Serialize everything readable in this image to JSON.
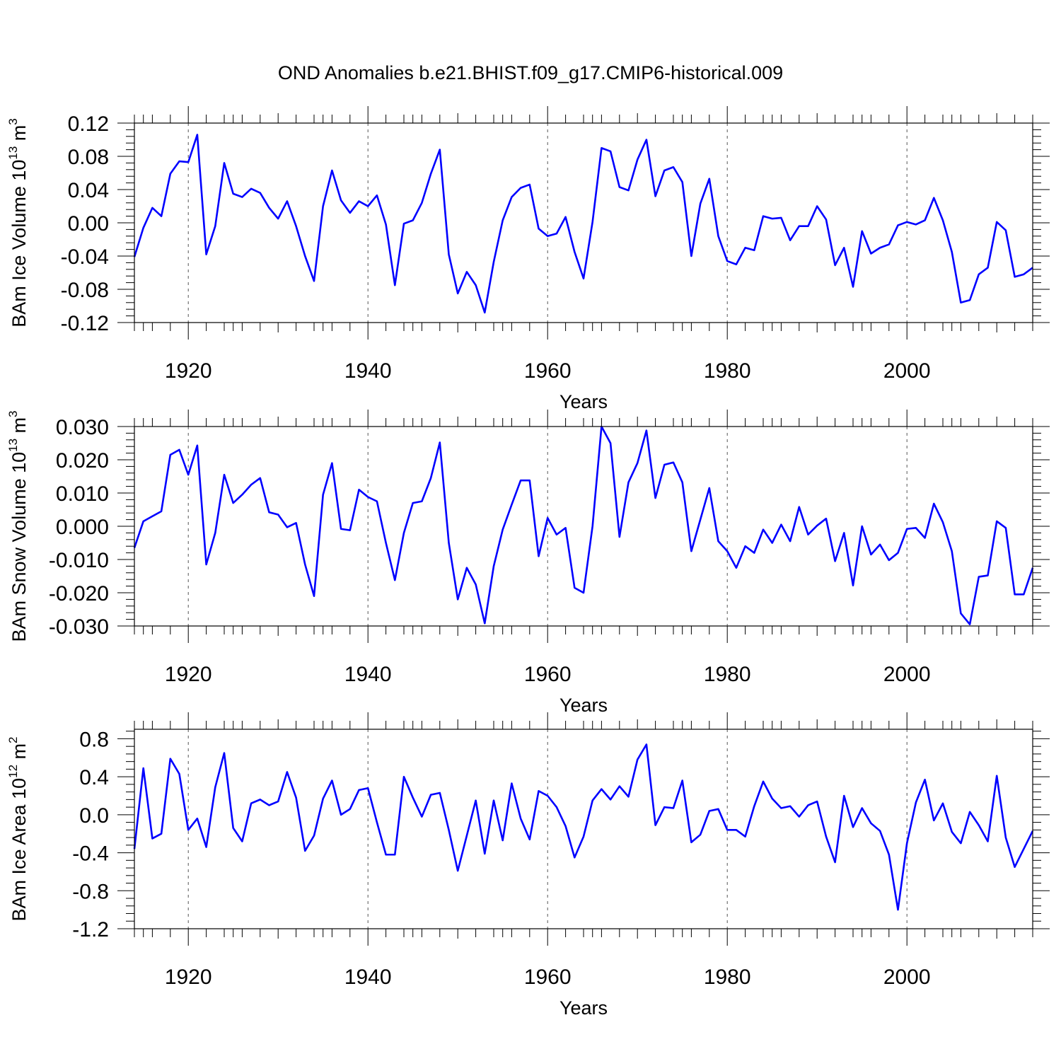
{
  "title": "OND Anomalies b.e21.BHIST.f09_g17.CMIP6-historical.009",
  "colors": {
    "line": "#0000ff",
    "axis": "#000000",
    "grid": "#555555"
  },
  "chart_data": [
    {
      "type": "line",
      "ylabel": {
        "base": "BAm Ice Volume 10",
        "exp": "13",
        "unit": " m",
        "unit_exp": "3"
      },
      "xlabel": "Years",
      "xlim": [
        1914,
        2014
      ],
      "ylim": [
        -0.12,
        0.12
      ],
      "ytick_values": [
        -0.12,
        -0.08,
        -0.04,
        0.0,
        0.04,
        0.08,
        0.12
      ],
      "ytick_labels": [
        "-0.12",
        "-0.08",
        "-0.04",
        "0.00",
        "0.04",
        "0.08",
        "0.12"
      ],
      "xtick_values": [
        1920,
        1940,
        1960,
        1980,
        2000
      ],
      "xtick_labels": [
        "1920",
        "1940",
        "1960",
        "1980",
        "2000"
      ],
      "x_start": 1914,
      "values": [
        -0.041,
        -0.006,
        0.018,
        0.008,
        0.059,
        0.074,
        0.073,
        0.106,
        -0.038,
        -0.004,
        0.072,
        0.035,
        0.031,
        0.041,
        0.036,
        0.018,
        0.005,
        0.026,
        -0.004,
        -0.04,
        -0.07,
        0.02,
        0.063,
        0.027,
        0.012,
        0.026,
        0.02,
        0.033,
        -0.002,
        -0.075,
        -0.001,
        0.003,
        0.024,
        0.059,
        0.088,
        -0.038,
        -0.085,
        -0.059,
        -0.075,
        -0.108,
        -0.047,
        0.003,
        0.031,
        0.042,
        0.046,
        -0.007,
        -0.016,
        -0.013,
        0.007,
        -0.035,
        -0.067,
        0.001,
        0.09,
        0.086,
        0.043,
        0.039,
        0.076,
        0.1,
        0.032,
        0.063,
        0.067,
        0.049,
        -0.04,
        0.023,
        0.053,
        -0.016,
        -0.046,
        -0.05,
        -0.03,
        -0.033,
        0.008,
        0.005,
        0.006,
        -0.021,
        -0.004,
        -0.004,
        0.02,
        0.004,
        -0.051,
        -0.03,
        -0.077,
        -0.01,
        -0.037,
        -0.03,
        -0.026,
        -0.003,
        0.001,
        -0.002,
        0.003,
        0.03,
        0.003,
        -0.035,
        -0.096,
        -0.093,
        -0.062,
        -0.054,
        0.001,
        -0.009,
        -0.065,
        -0.062,
        -0.054
      ]
    },
    {
      "type": "line",
      "ylabel": {
        "base": "BAm Snow Volume 10",
        "exp": "13",
        "unit": " m",
        "unit_exp": "3"
      },
      "xlabel": "Years",
      "xlim": [
        1914,
        2014
      ],
      "ylim": [
        -0.03,
        0.03
      ],
      "ytick_values": [
        -0.03,
        -0.02,
        -0.01,
        0.0,
        0.01,
        0.02,
        0.03
      ],
      "ytick_labels": [
        "-0.030",
        "-0.020",
        "-0.010",
        "0.000",
        "0.010",
        "0.020",
        "0.030"
      ],
      "xtick_values": [
        1920,
        1940,
        1960,
        1980,
        2000
      ],
      "xtick_labels": [
        "1920",
        "1940",
        "1960",
        "1980",
        "2000"
      ],
      "x_start": 1914,
      "values": [
        -0.0065,
        0.0015,
        0.003,
        0.0045,
        0.0215,
        0.023,
        0.0155,
        0.0243,
        -0.0115,
        -0.002,
        0.0155,
        0.007,
        0.0095,
        0.0125,
        0.0145,
        0.0042,
        0.0035,
        -0.0003,
        0.001,
        -0.0115,
        -0.021,
        0.0095,
        0.019,
        -0.0008,
        -0.0012,
        0.011,
        0.0088,
        0.0075,
        -0.005,
        -0.0162,
        -0.002,
        0.007,
        0.0075,
        0.0145,
        0.0252,
        -0.005,
        -0.022,
        -0.0125,
        -0.0175,
        -0.0292,
        -0.012,
        -0.001,
        0.0065,
        0.0138,
        0.0138,
        -0.009,
        0.0025,
        -0.0025,
        -0.0005,
        -0.0185,
        -0.02,
        0.0,
        0.03,
        0.025,
        -0.0032,
        0.0132,
        0.019,
        0.0288,
        0.0085,
        0.0185,
        0.0192,
        0.0132,
        -0.0075,
        0.002,
        0.0115,
        -0.0045,
        -0.0075,
        -0.0125,
        -0.006,
        -0.008,
        -0.001,
        -0.005,
        0.0005,
        -0.0045,
        0.0058,
        -0.0025,
        0.0002,
        0.0023,
        -0.0105,
        -0.002,
        -0.0178,
        0.0,
        -0.0085,
        -0.0055,
        -0.0102,
        -0.008,
        -0.0008,
        -0.0005,
        -0.0035,
        0.0068,
        0.0012,
        -0.0075,
        -0.0262,
        -0.0295,
        -0.0152,
        -0.0148,
        0.0015,
        -0.0005,
        -0.0205,
        -0.0205,
        -0.0125
      ]
    },
    {
      "type": "line",
      "ylabel": {
        "base": "BAm Ice Area 10",
        "exp": "12",
        "unit": " m",
        "unit_exp": "2"
      },
      "xlabel": "Years",
      "xlim": [
        1914,
        2014
      ],
      "ylim": [
        -1.2,
        0.9
      ],
      "ytick_values": [
        -1.2,
        -0.8,
        -0.4,
        0.0,
        0.4,
        0.8
      ],
      "ytick_labels": [
        "-1.2",
        "-0.8",
        "-0.4",
        "0.0",
        "0.4",
        "0.8"
      ],
      "xtick_values": [
        1920,
        1940,
        1960,
        1980,
        2000
      ],
      "xtick_labels": [
        "1920",
        "1940",
        "1960",
        "1980",
        "2000"
      ],
      "x_start": 1914,
      "values": [
        -0.36,
        0.49,
        -0.25,
        -0.2,
        0.59,
        0.43,
        -0.16,
        -0.04,
        -0.34,
        0.29,
        0.65,
        -0.14,
        -0.28,
        0.12,
        0.16,
        0.1,
        0.14,
        0.45,
        0.18,
        -0.38,
        -0.22,
        0.17,
        0.36,
        0.0,
        0.06,
        0.26,
        0.28,
        -0.08,
        -0.42,
        -0.42,
        0.4,
        0.18,
        -0.02,
        0.21,
        0.23,
        -0.16,
        -0.59,
        -0.22,
        0.15,
        -0.41,
        0.15,
        -0.27,
        0.33,
        -0.04,
        -0.26,
        0.25,
        0.2,
        0.08,
        -0.12,
        -0.45,
        -0.23,
        0.15,
        0.27,
        0.16,
        0.3,
        0.19,
        0.58,
        0.74,
        -0.11,
        0.08,
        0.07,
        0.36,
        -0.29,
        -0.21,
        0.04,
        0.06,
        -0.16,
        -0.16,
        -0.23,
        0.09,
        0.35,
        0.17,
        0.07,
        0.09,
        -0.02,
        0.1,
        0.14,
        -0.23,
        -0.5,
        0.2,
        -0.13,
        0.07,
        -0.09,
        -0.17,
        -0.42,
        -1.0,
        -0.3,
        0.13,
        0.37,
        -0.06,
        0.12,
        -0.18,
        -0.3,
        0.03,
        -0.11,
        -0.28,
        0.41,
        -0.24,
        -0.55,
        -0.36,
        -0.17
      ]
    }
  ]
}
